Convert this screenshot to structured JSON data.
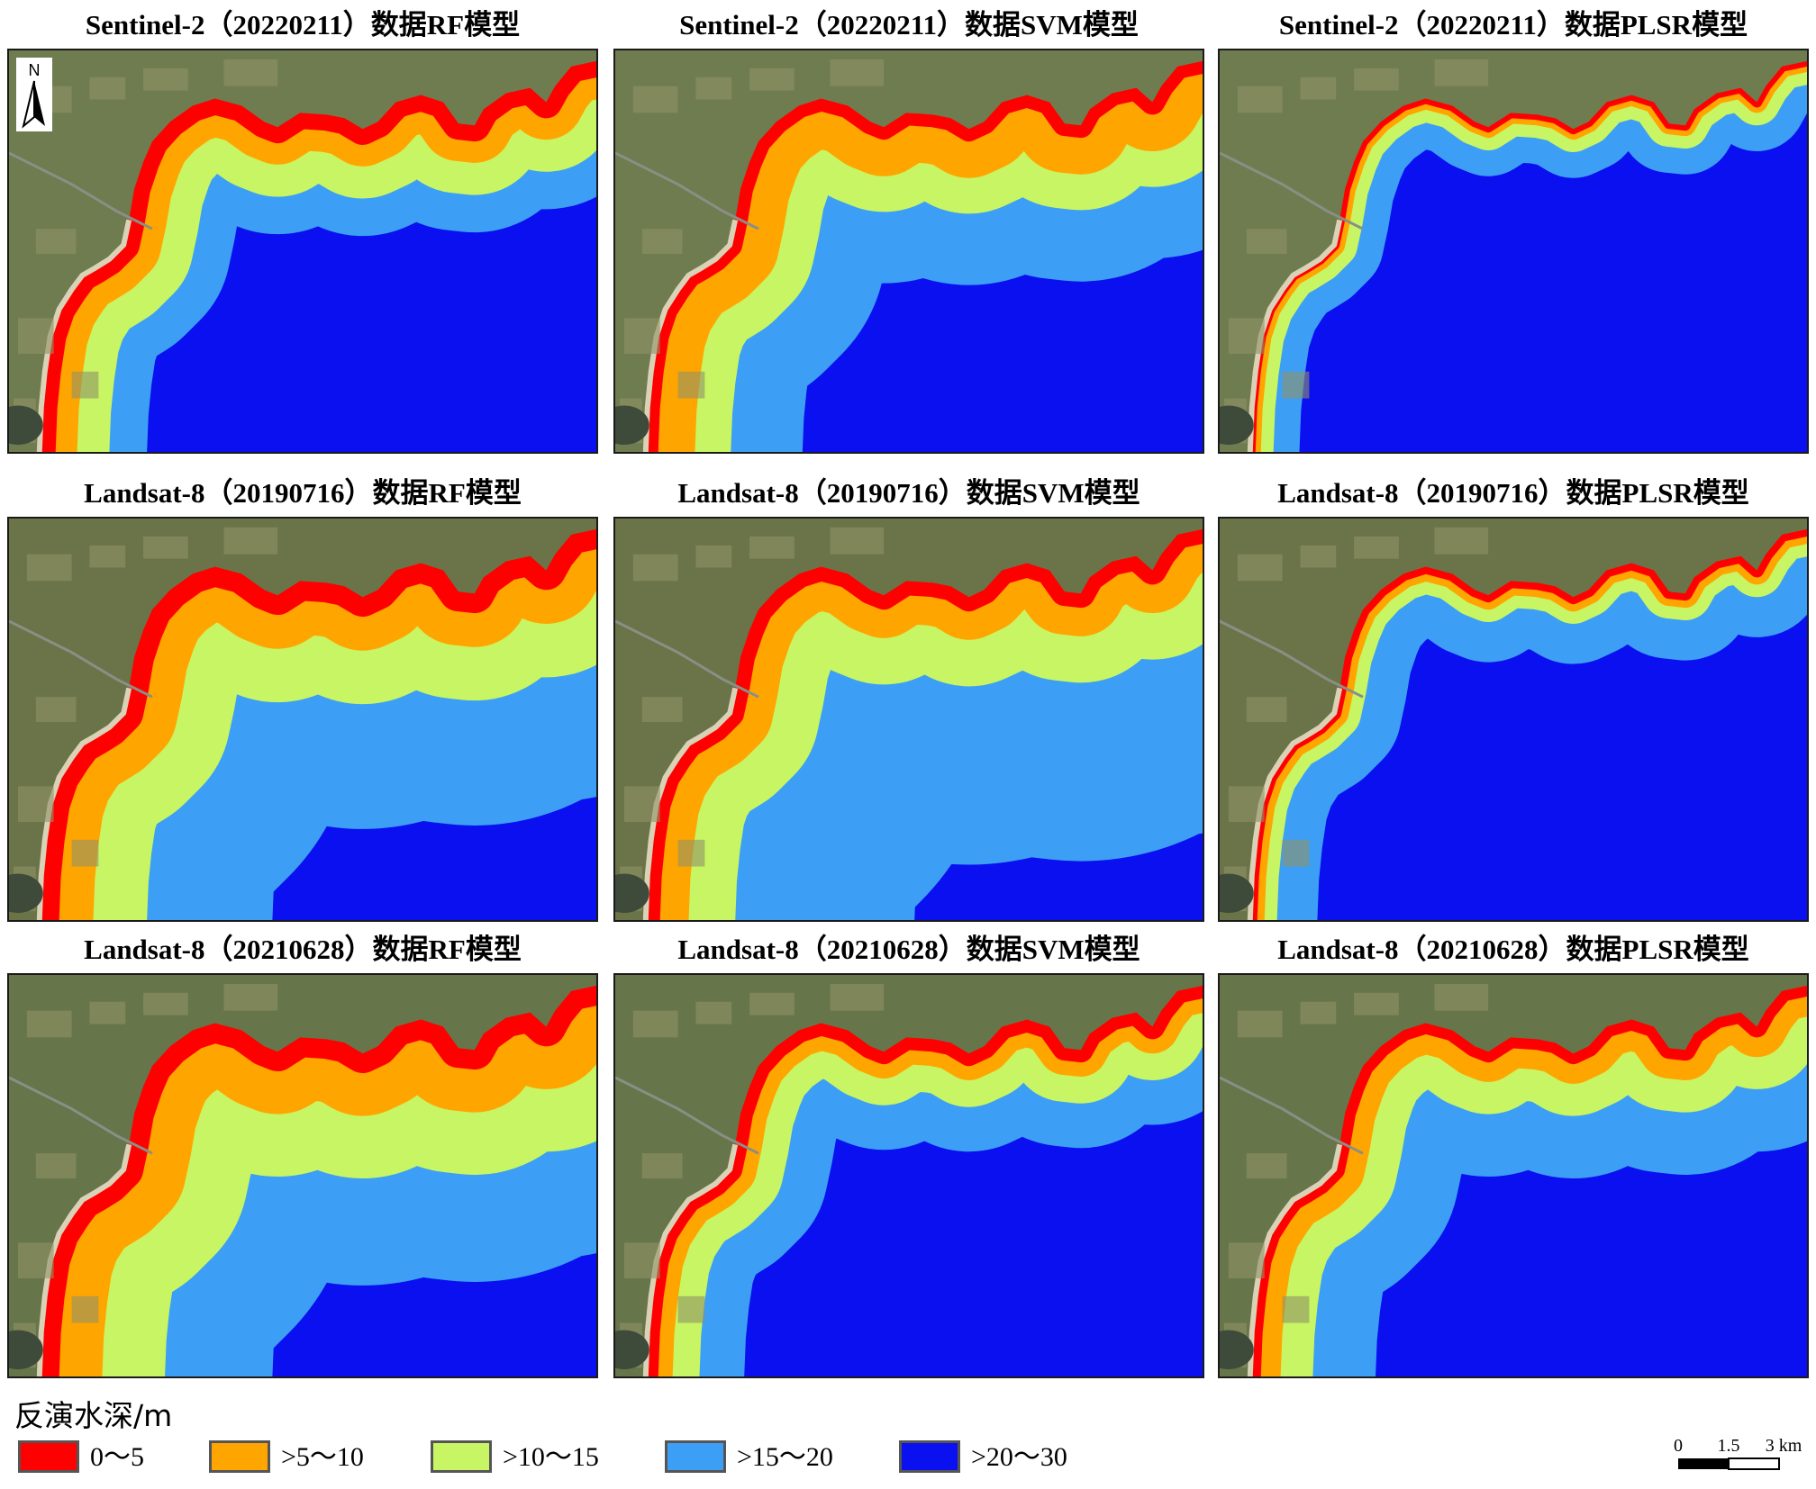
{
  "panels": [
    {
      "title": "Sentinel-2（20220211）数据RF模型",
      "scene": "s2",
      "model": "rf"
    },
    {
      "title": "Sentinel-2（20220211）数据SVM模型",
      "scene": "s2",
      "model": "svm"
    },
    {
      "title": "Sentinel-2（20220211）数据PLSR模型",
      "scene": "s2",
      "model": "plsr"
    },
    {
      "title": "Landsat-8（20190716）数据RF模型",
      "scene": "l8a",
      "model": "rf"
    },
    {
      "title": "Landsat-8（20190716）数据SVM模型",
      "scene": "l8a",
      "model": "svm"
    },
    {
      "title": "Landsat-8（20190716）数据PLSR模型",
      "scene": "l8a",
      "model": "plsr"
    },
    {
      "title": "Landsat-8（20210628）数据RF模型",
      "scene": "l8b",
      "model": "rf"
    },
    {
      "title": "Landsat-8（20210628）数据SVM模型",
      "scene": "l8b",
      "model": "svm"
    },
    {
      "title": "Landsat-8（20210628）数据PLSR模型",
      "scene": "l8b",
      "model": "plsr"
    }
  ],
  "north_arrow": {
    "label": "N",
    "icon": "north-arrow-icon"
  },
  "legend": {
    "title": "反演水深/m",
    "items": [
      {
        "label": "0～5",
        "color": "#ff0000"
      },
      {
        "label": ">5～10",
        "color": "#ffa500"
      },
      {
        "label": ">10～15",
        "color": "#c8f564"
      },
      {
        "label": ">15～20",
        "color": "#3c9ff5"
      },
      {
        "label": ">20～30",
        "color": "#0a10f0"
      }
    ]
  },
  "scale_bar": {
    "labels": [
      "0",
      "1.5",
      "3 km"
    ]
  },
  "colors": {
    "land": "#6d7a4e",
    "deep_water": "#0a10f0"
  }
}
